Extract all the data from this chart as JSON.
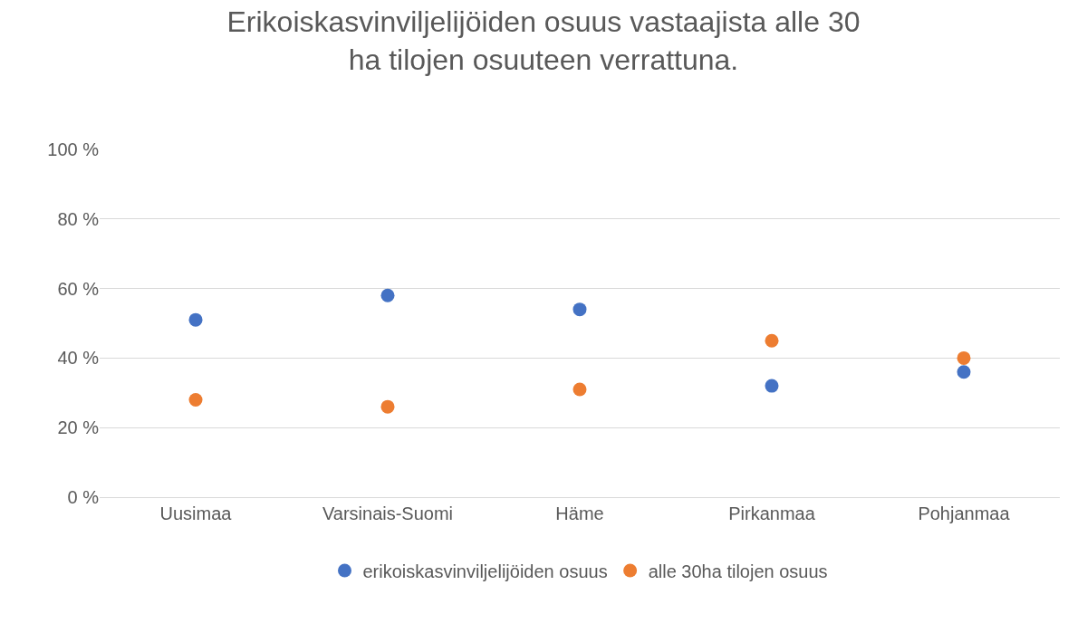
{
  "chart_data": {
    "type": "scatter",
    "title": "Erikoiskasvinviljelijöiden osuus vastaajista alle 30\nha tilojen osuuteen verrattuna.",
    "categories": [
      "Uusimaa",
      "Varsinais-Suomi",
      "Häme",
      "Pirkanmaa",
      "Pohjanmaa"
    ],
    "series": [
      {
        "name": "erikoiskasvinviljelijöiden osuus",
        "color": "#4472c4",
        "values": [
          51,
          58,
          54,
          32,
          36
        ]
      },
      {
        "name": "alle 30ha tilojen osuus",
        "color": "#ed7d31",
        "values": [
          28,
          26,
          31,
          45,
          40
        ]
      }
    ],
    "ylim": [
      0,
      100
    ],
    "yticks": [
      {
        "value": 0,
        "label": "0 %"
      },
      {
        "value": 20,
        "label": "20 %"
      },
      {
        "value": 40,
        "label": "40 %"
      },
      {
        "value": 60,
        "label": "60 %"
      },
      {
        "value": 80,
        "label": "80 %"
      },
      {
        "value": 100,
        "label": "100 %"
      }
    ],
    "grid": "y",
    "legend": "bottom",
    "marker": "circle"
  }
}
